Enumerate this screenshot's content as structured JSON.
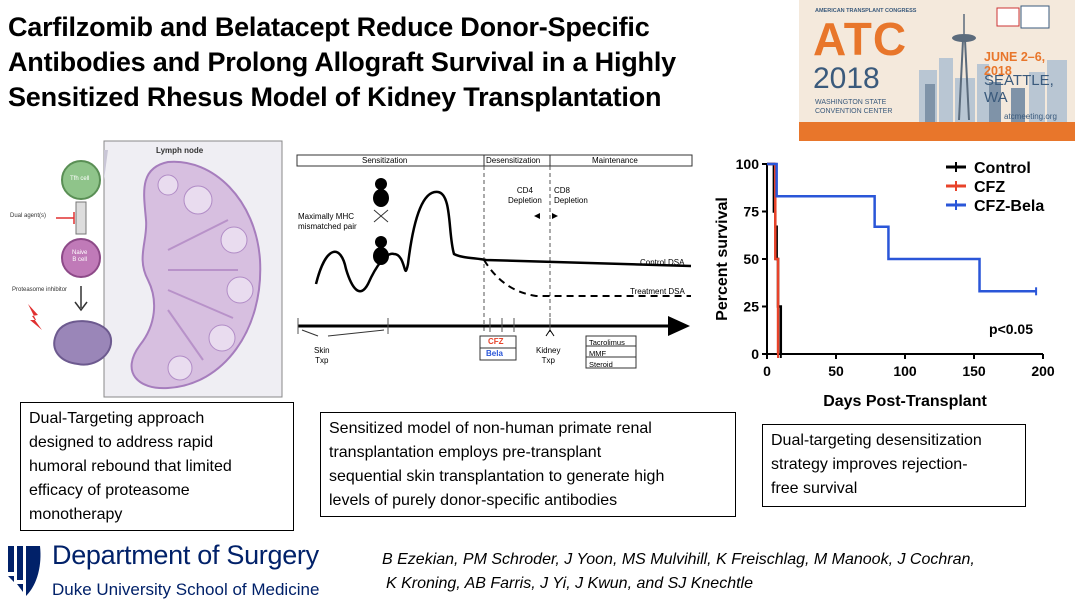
{
  "title_lines": [
    "Carfilzomib and Belatacept Reduce Donor-Specific",
    "Antibodies and Prolong Allograft Survival in a Highly",
    "Sensitized Rhesus Model of Kidney Transplantation"
  ],
  "banner": {
    "congress": "AMERICAN TRANSPLANT CONGRESS",
    "atc": "ATC",
    "year": "2018",
    "dates": "JUNE 2–6, 2018",
    "city": "SEATTLE, WA",
    "venue1": "WASHINGTON STATE",
    "venue2": "CONVENTION CENTER",
    "url": "atcmeeting.org",
    "colors": {
      "orange": "#e8762b",
      "blue": "#3a5a7c",
      "bg": "#f4e9dc"
    }
  },
  "lymph": {
    "title": "Lymph node",
    "tfh": "Tfh cell",
    "dual": "Dual agent(s)",
    "naive1": "Naive",
    "naive2": "B cell",
    "proteasome": "Proteasome inhibitor"
  },
  "timeline": {
    "phases": [
      "Sensitization",
      "Desensitization",
      "Maintenance"
    ],
    "mhc1": "Maximally MHC",
    "mhc2": "mismatched pair",
    "cd4_1": "CD4",
    "cd4_2": "Depletion",
    "cd8_1": "CD8",
    "cd8_2": "Depletion",
    "control": "Control DSA",
    "treatment": "Treatment DSA",
    "skin1": "Skin",
    "skin2": "Txp",
    "cfz": "CFZ",
    "bela": "Bela",
    "kidney1": "Kidney",
    "kidney2": "Txp",
    "maint": [
      "Tacrolimus",
      "MMF",
      "Steroid"
    ]
  },
  "chart_data": {
    "type": "line",
    "subtype": "kaplan-meier-step",
    "xlabel": "Days Post-Transplant",
    "ylabel": "Percent survival",
    "xlim": [
      0,
      200
    ],
    "ylim": [
      0,
      100
    ],
    "xticks": [
      0,
      50,
      100,
      150,
      200
    ],
    "yticks": [
      0,
      25,
      50,
      75,
      100
    ],
    "annotation": "p<0.05",
    "legend_position": "top-right",
    "series": [
      {
        "name": "Control",
        "color": "#000000",
        "x": [
          0,
          5,
          6,
          7,
          8,
          10
        ],
        "y": [
          100,
          75,
          67,
          50,
          25,
          0
        ]
      },
      {
        "name": "CFZ",
        "color": "#e8432a",
        "x": [
          0,
          5,
          6,
          8
        ],
        "y": [
          100,
          100,
          50,
          0
        ]
      },
      {
        "name": "CFZ-Bela",
        "color": "#2a56d8",
        "x": [
          0,
          7,
          78,
          88,
          154,
          195
        ],
        "y": [
          100,
          83,
          67,
          50,
          33,
          33
        ]
      }
    ]
  },
  "boxes": {
    "left": [
      "Dual-Targeting approach",
      "designed to address rapid",
      "humoral rebound that limited",
      "efficacy of proteasome",
      "monotherapy"
    ],
    "middle": [
      "Sensitized model of non-human primate renal",
      "transplantation employs pre-transplant",
      "sequential skin transplantation to generate high",
      "levels of purely donor-specific antibodies"
    ],
    "right": [
      "Dual-targeting desensitization",
      "strategy improves rejection-",
      "free survival"
    ]
  },
  "footer": {
    "dept": "Department of Surgery",
    "school": "Duke University School of Medicine",
    "brand_color": "#012169",
    "authors": [
      "B Ezekian, PM Schroder, J Yoon, MS Mulvihill, K Freischlag, M Manook, J Cochran,",
      "K Kroning, AB Farris, J Yi, J Kwun, and SJ Knechtle"
    ]
  }
}
